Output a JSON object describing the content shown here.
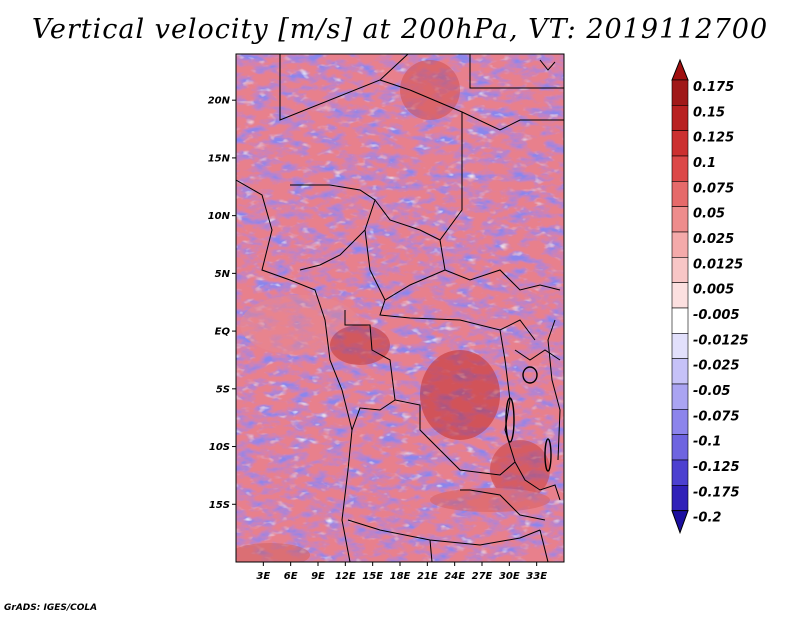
{
  "title": "Vertical velocity [m/s] at 200hPa, VT: 2019112700",
  "credit": "GrADS: IGES/COLA",
  "colors": {
    "positive_max": "#a01010",
    "negative_max": "#1c0fa0",
    "neutral": "#ffffff"
  },
  "map": {
    "lon_range": [
      0,
      36
    ],
    "lat_range": [
      -20,
      24
    ],
    "lat_ticks": [
      {
        "value": 20,
        "label": "20N"
      },
      {
        "value": 15,
        "label": "15N"
      },
      {
        "value": 10,
        "label": "10N"
      },
      {
        "value": 5,
        "label": "5N"
      },
      {
        "value": 0,
        "label": "EQ"
      },
      {
        "value": -5,
        "label": "5S"
      },
      {
        "value": -10,
        "label": "10S"
      },
      {
        "value": -15,
        "label": "15S"
      }
    ],
    "lon_ticks": [
      {
        "value": 3,
        "label": "3E"
      },
      {
        "value": 6,
        "label": "6E"
      },
      {
        "value": 9,
        "label": "9E"
      },
      {
        "value": 12,
        "label": "12E"
      },
      {
        "value": 15,
        "label": "15E"
      },
      {
        "value": 18,
        "label": "18E"
      },
      {
        "value": 21,
        "label": "21E"
      },
      {
        "value": 24,
        "label": "24E"
      },
      {
        "value": 27,
        "label": "27E"
      },
      {
        "value": 30,
        "label": "30E"
      },
      {
        "value": 33,
        "label": "33E"
      }
    ]
  },
  "colorbar": {
    "levels": [
      {
        "label": "0.175",
        "color": "#a01818"
      },
      {
        "label": "0.15",
        "color": "#b82020"
      },
      {
        "label": "0.125",
        "color": "#cc3030"
      },
      {
        "label": "0.1",
        "color": "#dc4848"
      },
      {
        "label": "0.075",
        "color": "#e66a6a"
      },
      {
        "label": "0.05",
        "color": "#ee8c8c"
      },
      {
        "label": "0.025",
        "color": "#f4aaaa"
      },
      {
        "label": "0.0125",
        "color": "#f8c6c6"
      },
      {
        "label": "0.005",
        "color": "#fce0e0"
      },
      {
        "label": "-0.005",
        "color": "#ffffff"
      },
      {
        "label": "-0.0125",
        "color": "#e2e0fc"
      },
      {
        "label": "-0.025",
        "color": "#c6c2f8"
      },
      {
        "label": "-0.05",
        "color": "#aaa4f2"
      },
      {
        "label": "-0.075",
        "color": "#8c84ec"
      },
      {
        "label": "-0.1",
        "color": "#6e64e0"
      },
      {
        "label": "-0.125",
        "color": "#4c40d0"
      },
      {
        "label": "-0.175",
        "color": "#3020b8"
      },
      {
        "label": "-0.2",
        "color": "#1c0fa0"
      }
    ],
    "top_color": "#a01010",
    "bottom_color": "#1c0fa0"
  }
}
